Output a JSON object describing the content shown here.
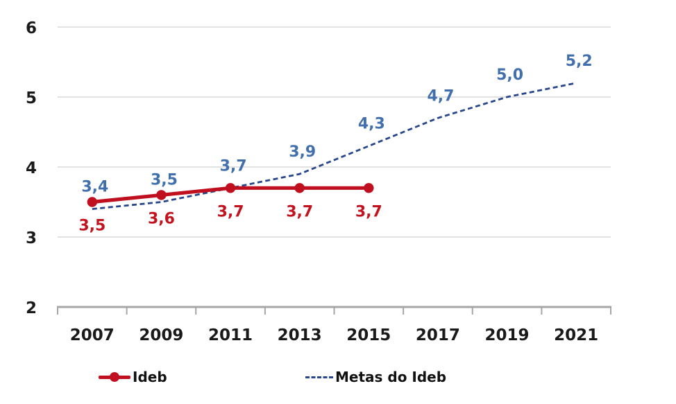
{
  "chart_data": {
    "type": "line",
    "title": "",
    "xlabel": "",
    "ylabel": "",
    "categories": [
      "2007",
      "2009",
      "2011",
      "2013",
      "2015",
      "2017",
      "2019",
      "2021"
    ],
    "series": [
      {
        "name": "Ideb",
        "values": [
          3.5,
          3.6,
          3.7,
          3.7,
          3.7
        ],
        "color": "#C00F1E",
        "line_style": "solid",
        "markers": true,
        "label_color": "#C2131F",
        "label_position": "below"
      },
      {
        "name": "Metas do Ideb",
        "values": [
          3.4,
          3.5,
          3.7,
          3.9,
          4.3,
          4.7,
          5.0,
          5.2
        ],
        "color": "#28468C",
        "line_style": "dashed",
        "markers": false,
        "label_color": "#4170AC",
        "label_position": "above"
      }
    ],
    "ylim": [
      2,
      6
    ],
    "yticks": [
      2,
      3,
      4,
      5,
      6
    ],
    "grid": "horizontal",
    "legend_position": "bottom",
    "decimal_separator": ",",
    "colors": {
      "background": "#FFFFFF",
      "grid": "#D9D9D9",
      "axis": "#A6A6A6",
      "axis_text": "#1A1A1A",
      "legend_text": "#111111"
    }
  }
}
